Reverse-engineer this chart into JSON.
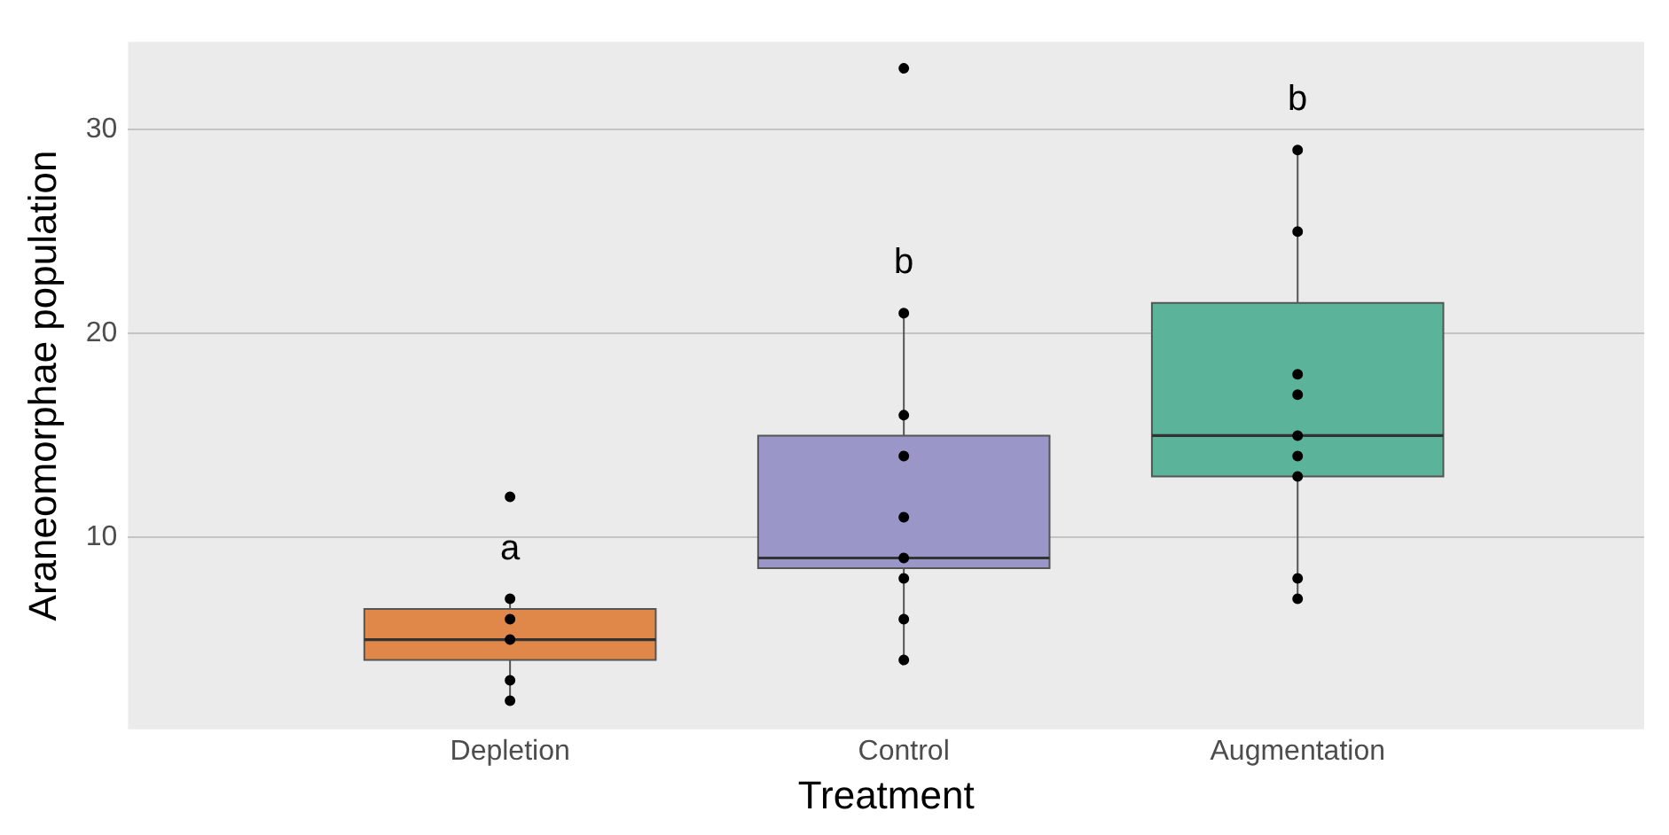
{
  "chart_data": {
    "type": "box",
    "xlabel": "Treatment",
    "ylabel": "Araneomorphae population",
    "categories": [
      "Depletion",
      "Control",
      "Augmentation"
    ],
    "colors": [
      "#e0884a",
      "#9a97c8",
      "#5bb39a"
    ],
    "boxes": [
      {
        "low": 2,
        "q1": 4,
        "median": 5,
        "q3": 6.5,
        "high": 7
      },
      {
        "low": 4,
        "q1": 8.5,
        "median": 9,
        "q3": 15,
        "high": 21
      },
      {
        "low": 7,
        "q1": 13,
        "median": 15,
        "q3": 21.5,
        "high": 29
      }
    ],
    "series": [
      {
        "type": "scatter",
        "color": "#000000",
        "x": [
          "Depletion",
          "Depletion",
          "Depletion",
          "Depletion",
          "Depletion",
          "Depletion",
          "Control",
          "Control",
          "Control",
          "Control",
          "Control",
          "Control",
          "Control",
          "Control",
          "Control",
          "Augmentation",
          "Augmentation",
          "Augmentation",
          "Augmentation",
          "Augmentation",
          "Augmentation",
          "Augmentation",
          "Augmentation",
          "Augmentation"
        ],
        "values": [
          12,
          7,
          6,
          5,
          3,
          2,
          33,
          21,
          16,
          14,
          11,
          9,
          8,
          6,
          4,
          29,
          25,
          18,
          17,
          15,
          14,
          13,
          8,
          7
        ]
      }
    ],
    "annotations": [
      "a",
      "b",
      "b"
    ],
    "ylim": [
      0.6,
      34.3
    ],
    "yticks": [
      10,
      20,
      30
    ],
    "grid": "y",
    "marker": "circle"
  }
}
